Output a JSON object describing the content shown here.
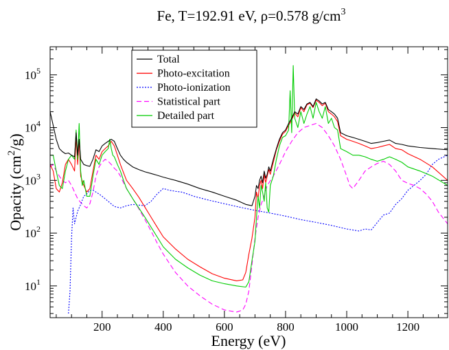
{
  "chart_data": {
    "type": "line",
    "title": {
      "main": "Fe, T=192.91 eV, ρ=0.578 g/cm",
      "superscript": "3"
    },
    "xlabel": "Energy (eV)",
    "ylabel": {
      "prefix": "Opacity (cm",
      "superscript": "2",
      "suffix": "/g)"
    },
    "xlim": [
      30,
      1330
    ],
    "ylim": [
      2.5,
      340000
    ],
    "yscale": "log",
    "grid": false,
    "legend_position": "top-center",
    "x_ticks": [
      {
        "value": 200,
        "label": "200"
      },
      {
        "value": 400,
        "label": "400"
      },
      {
        "value": 600,
        "label": "600"
      },
      {
        "value": 800,
        "label": "800"
      },
      {
        "value": 1000,
        "label": "1000"
      },
      {
        "value": 1200,
        "label": "1200"
      }
    ],
    "y_ticks": [
      {
        "value": 10,
        "base": "10",
        "exp": "1"
      },
      {
        "value": 100,
        "base": "10",
        "exp": "2"
      },
      {
        "value": 1000,
        "base": "10",
        "exp": "3"
      },
      {
        "value": 10000,
        "base": "10",
        "exp": "4"
      },
      {
        "value": 100000,
        "base": "10",
        "exp": "5"
      }
    ],
    "series": [
      {
        "name": "Total",
        "color": "#000000",
        "dash": "",
        "x": [
          30,
          40,
          50,
          60,
          70,
          80,
          90,
          100,
          110,
          115,
          120,
          125,
          130,
          140,
          150,
          160,
          170,
          180,
          190,
          200,
          210,
          220,
          230,
          240,
          250,
          260,
          270,
          280,
          300,
          320,
          340,
          360,
          380,
          400,
          440,
          480,
          520,
          560,
          600,
          640,
          670,
          690,
          700,
          705,
          710,
          715,
          720,
          725,
          730,
          735,
          740,
          745,
          750,
          760,
          770,
          780,
          790,
          800,
          810,
          820,
          830,
          840,
          850,
          860,
          870,
          880,
          890,
          900,
          910,
          920,
          930,
          940,
          950,
          960,
          970,
          980,
          1000,
          1020,
          1040,
          1060,
          1080,
          1100,
          1120,
          1140,
          1160,
          1180,
          1200,
          1240,
          1280,
          1330
        ],
        "y": [
          20000,
          11000,
          6000,
          4000,
          3500,
          3200,
          3300,
          3000,
          2800,
          8000,
          3000,
          6000,
          2500,
          2000,
          1900,
          1850,
          2500,
          3800,
          3500,
          4500,
          5000,
          5500,
          6000,
          5500,
          4000,
          3000,
          2500,
          2200,
          1800,
          1600,
          1450,
          1350,
          1250,
          1150,
          1000,
          850,
          700,
          600,
          500,
          420,
          350,
          330,
          500,
          800,
          700,
          1000,
          1200,
          900,
          1500,
          1100,
          1300,
          1800,
          1500,
          2500,
          4000,
          6000,
          8000,
          9000,
          12000,
          15000,
          20000,
          18000,
          25000,
          22000,
          28000,
          30000,
          25000,
          35000,
          32000,
          28000,
          30000,
          22000,
          20000,
          18000,
          15000,
          8000,
          7000,
          6500,
          6000,
          5500,
          5000,
          5200,
          5500,
          5800,
          5000,
          4800,
          4500,
          4200,
          4000,
          3800
        ]
      },
      {
        "name": "Photo-excitation",
        "color": "#ff0000",
        "dash": "",
        "x": [
          30,
          40,
          50,
          60,
          70,
          80,
          90,
          100,
          110,
          115,
          120,
          125,
          130,
          140,
          150,
          160,
          170,
          180,
          190,
          200,
          210,
          220,
          230,
          240,
          250,
          260,
          270,
          280,
          300,
          320,
          340,
          360,
          380,
          400,
          440,
          480,
          520,
          560,
          600,
          640,
          660,
          670,
          680,
          690,
          700,
          705,
          710,
          715,
          720,
          725,
          730,
          735,
          740,
          745,
          750,
          760,
          770,
          780,
          790,
          800,
          810,
          820,
          830,
          840,
          850,
          860,
          870,
          880,
          890,
          900,
          910,
          920,
          930,
          940,
          950,
          960,
          970,
          980,
          1000,
          1020,
          1040,
          1060,
          1080,
          1100,
          1120,
          1140,
          1160,
          1180,
          1200,
          1240,
          1280,
          1330
        ],
        "y": [
          2000,
          1500,
          700,
          600,
          900,
          2000,
          2500,
          2000,
          1500,
          7000,
          2000,
          6000,
          1200,
          800,
          600,
          700,
          1500,
          3000,
          2500,
          3500,
          4000,
          4500,
          5500,
          4500,
          3000,
          2000,
          1400,
          1000,
          700,
          480,
          310,
          200,
          130,
          85,
          50,
          32,
          23,
          17,
          14,
          12.5,
          13,
          18,
          40,
          80,
          200,
          600,
          450,
          800,
          1000,
          700,
          1300,
          900,
          1200,
          1600,
          1300,
          2200,
          3800,
          5500,
          7500,
          8500,
          11000,
          14000,
          19000,
          16000,
          24000,
          20000,
          27000,
          29000,
          24000,
          33000,
          30000,
          26000,
          29000,
          20000,
          18000,
          16000,
          13000,
          7000,
          6000,
          5500,
          5000,
          4500,
          4000,
          4200,
          4500,
          4800,
          4000,
          3800,
          3200,
          2500,
          1800,
          1000
        ]
      },
      {
        "name": "Photo-ionization",
        "color": "#0000ff",
        "dash": "2,2",
        "x": [
          90,
          95,
          100,
          105,
          110,
          115,
          120,
          130,
          140,
          150,
          160,
          170,
          180,
          190,
          200,
          220,
          240,
          260,
          280,
          300,
          320,
          340,
          360,
          380,
          400,
          420,
          440,
          460,
          480,
          500,
          550,
          600,
          650,
          700,
          750,
          800,
          850,
          900,
          950,
          1000,
          1040,
          1060,
          1080,
          1100,
          1120,
          1140,
          1160,
          1180,
          1200,
          1220,
          1240,
          1260,
          1280,
          1300,
          1330
        ],
        "y": [
          3,
          8,
          80,
          300,
          150,
          200,
          260,
          350,
          500,
          550,
          650,
          650,
          600,
          550,
          500,
          400,
          320,
          300,
          330,
          350,
          340,
          330,
          400,
          550,
          700,
          650,
          620,
          600,
          550,
          500,
          420,
          360,
          310,
          270,
          240,
          210,
          180,
          160,
          140,
          120,
          110,
          120,
          115,
          160,
          220,
          240,
          350,
          450,
          650,
          800,
          1000,
          1300,
          2000,
          2500,
          3000
        ]
      },
      {
        "name": "Statistical part",
        "color": "#ff00ff",
        "dash": "7,4",
        "x": [
          30,
          40,
          50,
          60,
          70,
          80,
          90,
          100,
          110,
          120,
          130,
          140,
          150,
          160,
          170,
          180,
          190,
          200,
          210,
          220,
          230,
          240,
          250,
          260,
          270,
          280,
          300,
          320,
          340,
          360,
          380,
          400,
          440,
          480,
          520,
          560,
          600,
          640,
          660,
          670,
          680,
          690,
          700,
          710,
          720,
          730,
          740,
          760,
          780,
          800,
          820,
          840,
          860,
          880,
          900,
          920,
          940,
          960,
          980,
          1000,
          1010,
          1020,
          1040,
          1060,
          1080,
          1100,
          1120,
          1140,
          1160,
          1180,
          1200,
          1220,
          1240,
          1260,
          1280,
          1300,
          1330
        ],
        "y": [
          1800,
          2000,
          1500,
          1200,
          1000,
          900,
          1000,
          800,
          600,
          450,
          380,
          330,
          300,
          360,
          600,
          1200,
          1800,
          2200,
          2500,
          2300,
          2000,
          1700,
          1500,
          1200,
          900,
          700,
          450,
          290,
          180,
          110,
          65,
          40,
          18,
          10,
          6.5,
          4.5,
          3.5,
          3.2,
          3.5,
          4.5,
          8,
          25,
          80,
          200,
          350,
          500,
          800,
          1200,
          2000,
          3500,
          5500,
          8000,
          10000,
          11000,
          12000,
          10000,
          7000,
          4500,
          2500,
          1200,
          800,
          700,
          1000,
          1500,
          1800,
          2100,
          2300,
          2000,
          1500,
          1000,
          880,
          800,
          700,
          550,
          400,
          250,
          150
        ]
      },
      {
        "name": "Detailed part",
        "color": "#00cc00",
        "dash": "",
        "x": [
          30,
          40,
          50,
          60,
          70,
          80,
          90,
          100,
          110,
          115,
          120,
          125,
          130,
          135,
          140,
          145,
          150,
          160,
          170,
          180,
          190,
          200,
          210,
          220,
          225,
          230,
          235,
          240,
          250,
          260,
          270,
          280,
          300,
          320,
          340,
          360,
          380,
          400,
          440,
          480,
          520,
          560,
          600,
          640,
          670,
          680,
          690,
          700,
          705,
          710,
          715,
          720,
          725,
          730,
          735,
          740,
          745,
          750,
          760,
          770,
          780,
          790,
          800,
          810,
          815,
          820,
          825,
          830,
          840,
          850,
          860,
          870,
          880,
          890,
          900,
          910,
          920,
          930,
          940,
          950,
          960,
          970,
          980,
          1000,
          1020,
          1040,
          1060,
          1080,
          1100,
          1120,
          1140,
          1160,
          1180,
          1200,
          1240,
          1280,
          1330
        ],
        "y": [
          3000,
          3000,
          1500,
          800,
          700,
          1500,
          2500,
          3000,
          2500,
          9000,
          2500,
          12000,
          1500,
          800,
          1000,
          700,
          500,
          500,
          1200,
          2500,
          2000,
          3000,
          3500,
          4000,
          6000,
          4000,
          3000,
          2800,
          2000,
          1500,
          1000,
          700,
          450,
          300,
          200,
          130,
          85,
          55,
          32,
          22,
          16,
          12.5,
          11,
          10,
          9.5,
          12,
          30,
          70,
          200,
          500,
          300,
          800,
          600,
          400,
          900,
          300,
          250,
          800,
          1200,
          2500,
          4500,
          6500,
          7000,
          9000,
          50000,
          8000,
          150000,
          15000,
          10000,
          20000,
          12000,
          18000,
          25000,
          15000,
          30000,
          20000,
          15000,
          25000,
          12000,
          15000,
          10000,
          9000,
          4000,
          3500,
          3000,
          3000,
          2800,
          2500,
          2300,
          2500,
          2800,
          2500,
          2200,
          1800,
          1500,
          1200,
          800
        ]
      }
    ]
  }
}
